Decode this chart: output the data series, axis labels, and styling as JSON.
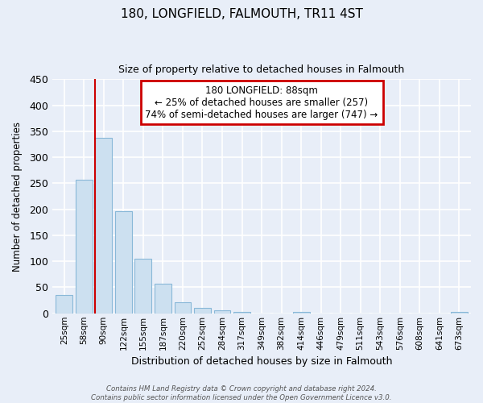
{
  "title": "180, LONGFIELD, FALMOUTH, TR11 4ST",
  "subtitle": "Size of property relative to detached houses in Falmouth",
  "xlabel": "Distribution of detached houses by size in Falmouth",
  "ylabel": "Number of detached properties",
  "bar_labels": [
    "25sqm",
    "58sqm",
    "90sqm",
    "122sqm",
    "155sqm",
    "187sqm",
    "220sqm",
    "252sqm",
    "284sqm",
    "317sqm",
    "349sqm",
    "382sqm",
    "414sqm",
    "446sqm",
    "479sqm",
    "511sqm",
    "543sqm",
    "576sqm",
    "608sqm",
    "641sqm",
    "673sqm"
  ],
  "bar_heights": [
    36,
    257,
    337,
    197,
    105,
    57,
    21,
    11,
    6,
    2,
    0,
    0,
    2,
    0,
    0,
    0,
    0,
    0,
    0,
    0,
    2
  ],
  "bar_color": "#cce0f0",
  "bar_edge_color": "#89b8d8",
  "highlight_bar_index": 2,
  "highlight_line_color": "#cc0000",
  "ylim": [
    0,
    450
  ],
  "yticks": [
    0,
    50,
    100,
    150,
    200,
    250,
    300,
    350,
    400,
    450
  ],
  "annotation_title": "180 LONGFIELD: 88sqm",
  "annotation_line1": "← 25% of detached houses are smaller (257)",
  "annotation_line2": "74% of semi-detached houses are larger (747) →",
  "footer_line1": "Contains HM Land Registry data © Crown copyright and database right 2024.",
  "footer_line2": "Contains public sector information licensed under the Open Government Licence v3.0.",
  "background_color": "#e8eef8",
  "grid_color": "#ffffff"
}
